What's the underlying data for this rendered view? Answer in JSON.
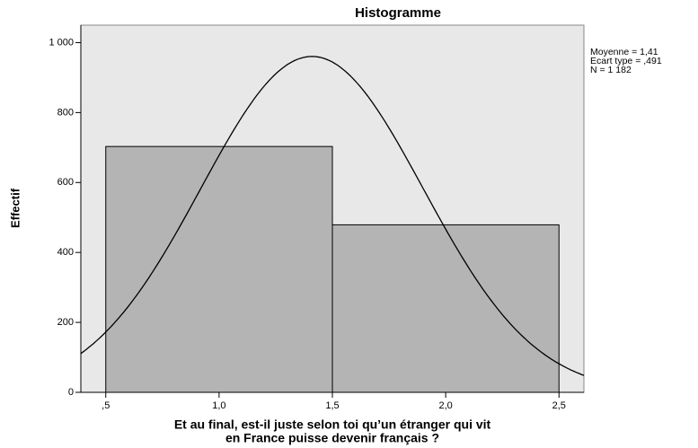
{
  "chart_data": {
    "type": "histogram",
    "title": "Histogramme",
    "xlabel": [
      "Et au final, est-il juste selon toi qu’un étranger qui vit",
      "en France puisse devenir français ?"
    ],
    "ylabel": "Effectif",
    "bins": [
      0.5,
      1.5,
      2.5
    ],
    "values": [
      703,
      479
    ],
    "color": "#b4b4b4",
    "xlim": [
      0.39,
      2.61
    ],
    "ylim": [
      0,
      1050
    ],
    "xticks": [
      {
        "value": 0.5,
        "label": ",5"
      },
      {
        "value": 1.0,
        "label": "1,0"
      },
      {
        "value": 1.5,
        "label": "1,5"
      },
      {
        "value": 2.0,
        "label": "2,0"
      },
      {
        "value": 2.5,
        "label": "2,5"
      }
    ],
    "yticks": [
      0,
      200,
      400,
      600,
      800,
      {
        "value": 1000,
        "label": "1 000"
      }
    ],
    "stats": [
      {
        "value": 1.41,
        "label": "Moyenne = 1,41"
      },
      {
        "value": 0.491,
        "label": "Ecart type = ,491"
      },
      {
        "value": 1182,
        "label": "N = 1 182"
      }
    ]
  }
}
